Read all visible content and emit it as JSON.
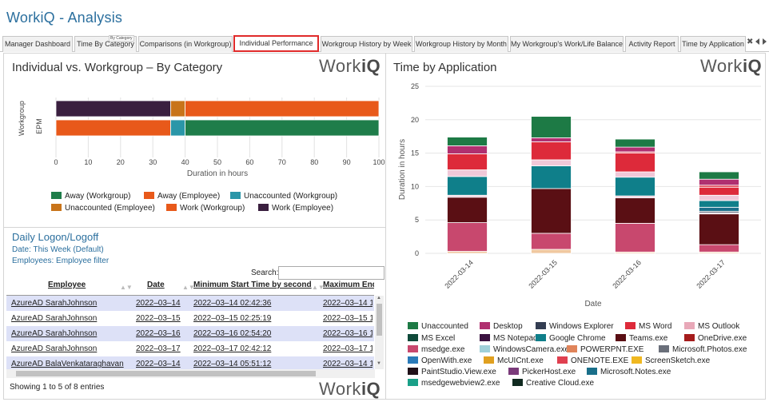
{
  "app": {
    "title": "WorkiQ - Analysis"
  },
  "tabs": [
    {
      "label": "Manager Dashboard"
    },
    {
      "label": "Time By Category"
    },
    {
      "label": "Comparisons (in Workgroup)"
    },
    {
      "label": "Individual Performance",
      "active": true
    },
    {
      "label": "Workgroup History by Week"
    },
    {
      "label": "Workgroup History by Month"
    },
    {
      "label": "My Workgroup's Work/Life Balance"
    },
    {
      "label": "Activity Report"
    },
    {
      "label": "Time by Application"
    }
  ],
  "tooltip_text": "By Category",
  "tab_close": "✖",
  "logo": {
    "prefix": "Work",
    "suffix": "iQ"
  },
  "left_chart": {
    "title": "Individual vs. Workgroup –  By Category"
  },
  "right_chart": {
    "title": "Time by Application"
  },
  "chart_data": [
    {
      "type": "bar",
      "orientation": "horizontal",
      "stacked": true,
      "title": "Individual vs. Workgroup –  By Category",
      "xlabel": "Duration in hours",
      "ylabel": "",
      "y_group_label": "Workgroup",
      "categories": [
        "Employee",
        "Workgroup"
      ],
      "category_labels": [
        "",
        "EPM"
      ],
      "xlim": [
        0,
        100
      ],
      "xticks": [
        0,
        10,
        20,
        30,
        40,
        50,
        60,
        70,
        80,
        90,
        100
      ],
      "legend_position": "bottom",
      "series": [
        {
          "name": "Away (Workgroup)",
          "color": "#1f7d4a",
          "values": [
            0,
            60
          ]
        },
        {
          "name": "Away (Employee)",
          "color": "#e8591a",
          "values": [
            60,
            0
          ]
        },
        {
          "name": "Unaccounted (Workgroup)",
          "color": "#2a96a8",
          "values": [
            0,
            4.5
          ]
        },
        {
          "name": "Unaccounted (Employee)",
          "color": "#c8741a",
          "values": [
            4.5,
            0
          ]
        },
        {
          "name": "Work (Workgroup)",
          "color": "#e8591a",
          "values": [
            0,
            35.5
          ]
        },
        {
          "name": "Work (Employee)",
          "color": "#3a1f3f",
          "values": [
            35.5,
            0
          ]
        }
      ],
      "stack_order_left_to_right": [
        "Work (Employee)",
        "Unaccounted (Employee)",
        "Away (Employee)"
      ],
      "stack_order_left_to_right_b": [
        "Work (Workgroup)",
        "Unaccounted (Workgroup)",
        "Away (Workgroup)"
      ]
    },
    {
      "type": "bar",
      "stacked": true,
      "title": "Time by Application",
      "xlabel": "Date",
      "ylabel": "Duration in hours",
      "categories": [
        "2022-03-14",
        "2022-03-15",
        "2022-03-16",
        "2022-03-17"
      ],
      "ylim": [
        0,
        25
      ],
      "yticks": [
        0,
        5,
        10,
        15,
        20,
        25
      ],
      "legend_position": "bottom",
      "series": [
        {
          "name": "PaintStudio.View.exe",
          "color": "#f0c8a0",
          "values": [
            0.3,
            0.6,
            0.2,
            0.2
          ]
        },
        {
          "name": "msedge.exe",
          "color": "#c8486e",
          "values": [
            4.3,
            2.4,
            4.3,
            1.1
          ]
        },
        {
          "name": "Teams.exe",
          "color": "#5a0f14",
          "values": [
            3.8,
            6.7,
            3.8,
            4.6
          ]
        },
        {
          "name": "Microsoft.Photos.exe",
          "color": "#f0d0dc",
          "values": [
            0.3,
            0,
            0.3,
            0.2
          ]
        },
        {
          "name": "OneDrive.exe",
          "color": "#13223a",
          "values": [
            0,
            0,
            0,
            0.2
          ]
        },
        {
          "name": "Microsoft.Notes.exe",
          "color": "#1a6f8a",
          "values": [
            0,
            0,
            0,
            0.6
          ]
        },
        {
          "name": "Google Chrome",
          "color": "#0f7f8a",
          "values": [
            2.8,
            3.4,
            2.8,
            1.0
          ]
        },
        {
          "name": "Windows Explorer",
          "color": "#f0c8d8",
          "values": [
            1.0,
            0.9,
            0.8,
            0.8
          ]
        },
        {
          "name": "MS Word",
          "color": "#dd2a3a",
          "values": [
            2.4,
            2.7,
            2.8,
            1.2
          ]
        },
        {
          "name": "ONENOTE.EXE",
          "color": "#e04050",
          "values": [
            0,
            0,
            0.2,
            0.3
          ]
        },
        {
          "name": "Desktop",
          "color": "#b03070",
          "values": [
            1.2,
            0.6,
            0.7,
            0.9
          ]
        },
        {
          "name": "Unaccounted",
          "color": "#1d7a45",
          "values": [
            1.3,
            3.2,
            1.2,
            1.1
          ]
        }
      ]
    }
  ],
  "left_legend": [
    {
      "label": "Away (Workgroup)",
      "color": "#1f7d4a"
    },
    {
      "label": "Away (Employee)",
      "color": "#e8591a"
    },
    {
      "label": "Unaccounted (Workgroup)",
      "color": "#2a96a8"
    },
    {
      "label": "Unaccounted (Employee)",
      "color": "#c8741a"
    },
    {
      "label": "Work (Workgroup)",
      "color": "#e8591a"
    },
    {
      "label": "Work (Employee)",
      "color": "#3a1f3f"
    }
  ],
  "right_legend": [
    {
      "label": "Unaccounted",
      "color": "#1d7a45"
    },
    {
      "label": "Desktop",
      "color": "#b03070"
    },
    {
      "label": "Windows Explorer",
      "color": "#333d52"
    },
    {
      "label": "MS Word",
      "color": "#dd2a3a"
    },
    {
      "label": "MS Outlook",
      "color": "#e8a8b8"
    },
    {
      "label": "MS Excel",
      "color": "#0f4a3a"
    },
    {
      "label": "MS Notepad",
      "color": "#3a1240"
    },
    {
      "label": "Google Chrome",
      "color": "#0f7f8a"
    },
    {
      "label": "Teams.exe",
      "color": "#5a0f14"
    },
    {
      "label": "OneDrive.exe",
      "color": "#a51c1c"
    },
    {
      "label": "msedge.exe",
      "color": "#c8486e"
    },
    {
      "label": "WindowsCamera.exe",
      "color": "#9fd0d8"
    },
    {
      "label": "POWERPNT.EXE",
      "color": "#e0845a"
    },
    {
      "label": "Microsoft.Photos.exe",
      "color": "#6a6f7a"
    },
    {
      "label": "OpenWith.exe",
      "color": "#2a7ab8"
    },
    {
      "label": "McUICnt.exe",
      "color": "#e0a020"
    },
    {
      "label": "ONENOTE.EXE",
      "color": "#e04050"
    },
    {
      "label": "ScreenSketch.exe",
      "color": "#f0b820"
    },
    {
      "label": "PaintStudio.View.exe",
      "color": "#201018"
    },
    {
      "label": "PickerHost.exe",
      "color": "#7a3a7a"
    },
    {
      "label": "Microsoft.Notes.exe",
      "color": "#1a6f8a"
    },
    {
      "label": "msedgewebview2.exe",
      "color": "#1aa088"
    },
    {
      "label": "Creative Cloud.exe",
      "color": "#102a20"
    }
  ],
  "daily": {
    "title": "Daily Logon/Logoff",
    "date_line": "Date: This Week (Default)",
    "employees_line": "Employees: Employee filter",
    "search_label": "Search:",
    "search_value": "",
    "columns": [
      "Employee",
      "Date",
      "Minimum Start Time by second",
      "Maximum End Tir"
    ],
    "rows": [
      [
        "AzureAD SarahJohnson",
        "2022–03–14",
        "2022–03–14 02:42:36",
        "2022–03–14 1"
      ],
      [
        "AzureAD SarahJohnson",
        "2022–03–15",
        "2022–03–15 02:25:19",
        "2022–03–15 1"
      ],
      [
        "AzureAD SarahJohnson",
        "2022–03–16",
        "2022–03–16 02:54:20",
        "2022–03–16 1"
      ],
      [
        "AzureAD SarahJohnson",
        "2022–03–17",
        "2022–03–17 02:42:12",
        "2022–03–17 1"
      ],
      [
        "AzureAD BalaVenkataraghavan",
        "2022–03–14",
        "2022–03–14 05:51:12",
        "2022–03–14 1"
      ]
    ],
    "info": "Showing 1 to 5 of 8 entries"
  }
}
